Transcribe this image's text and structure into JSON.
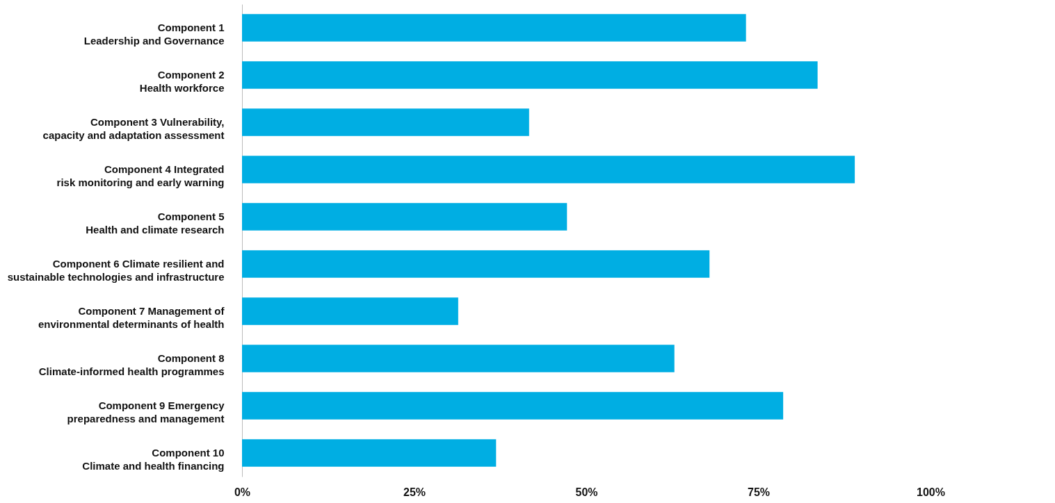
{
  "chart_data": {
    "type": "bar",
    "orientation": "horizontal",
    "categories": [
      "Component 1\nLeadership and Governance",
      "Component 2\nHealth workforce",
      "Component 3  Vulnerability,\ncapacity and adaptation assessment",
      "Component 4 Integrated\nrisk monitoring and early warning",
      "Component 5\nHealth and climate research",
      "Component 6 Climate resilient and\nsustainable technologies and infrastructure",
      "Component 7 Management of\nenvironmental determinants of health",
      "Component 8\nClimate-informed health programmes",
      "Component 9 Emergency\npreparedness and management",
      "Component 10\nClimate and health financing"
    ],
    "values": [
      73.2,
      83.6,
      41.7,
      89,
      47.2,
      67.9,
      31.4,
      62.8,
      78.6,
      36.9
    ],
    "color": "#00aee3",
    "xlim": [
      0,
      100
    ],
    "xticks": [
      {
        "value": 0,
        "label": "0%"
      },
      {
        "value": 25,
        "label": "25%"
      },
      {
        "value": 50,
        "label": "50%"
      },
      {
        "value": 75,
        "label": "75%"
      },
      {
        "value": 100,
        "label": "100%"
      }
    ],
    "grid": false
  }
}
